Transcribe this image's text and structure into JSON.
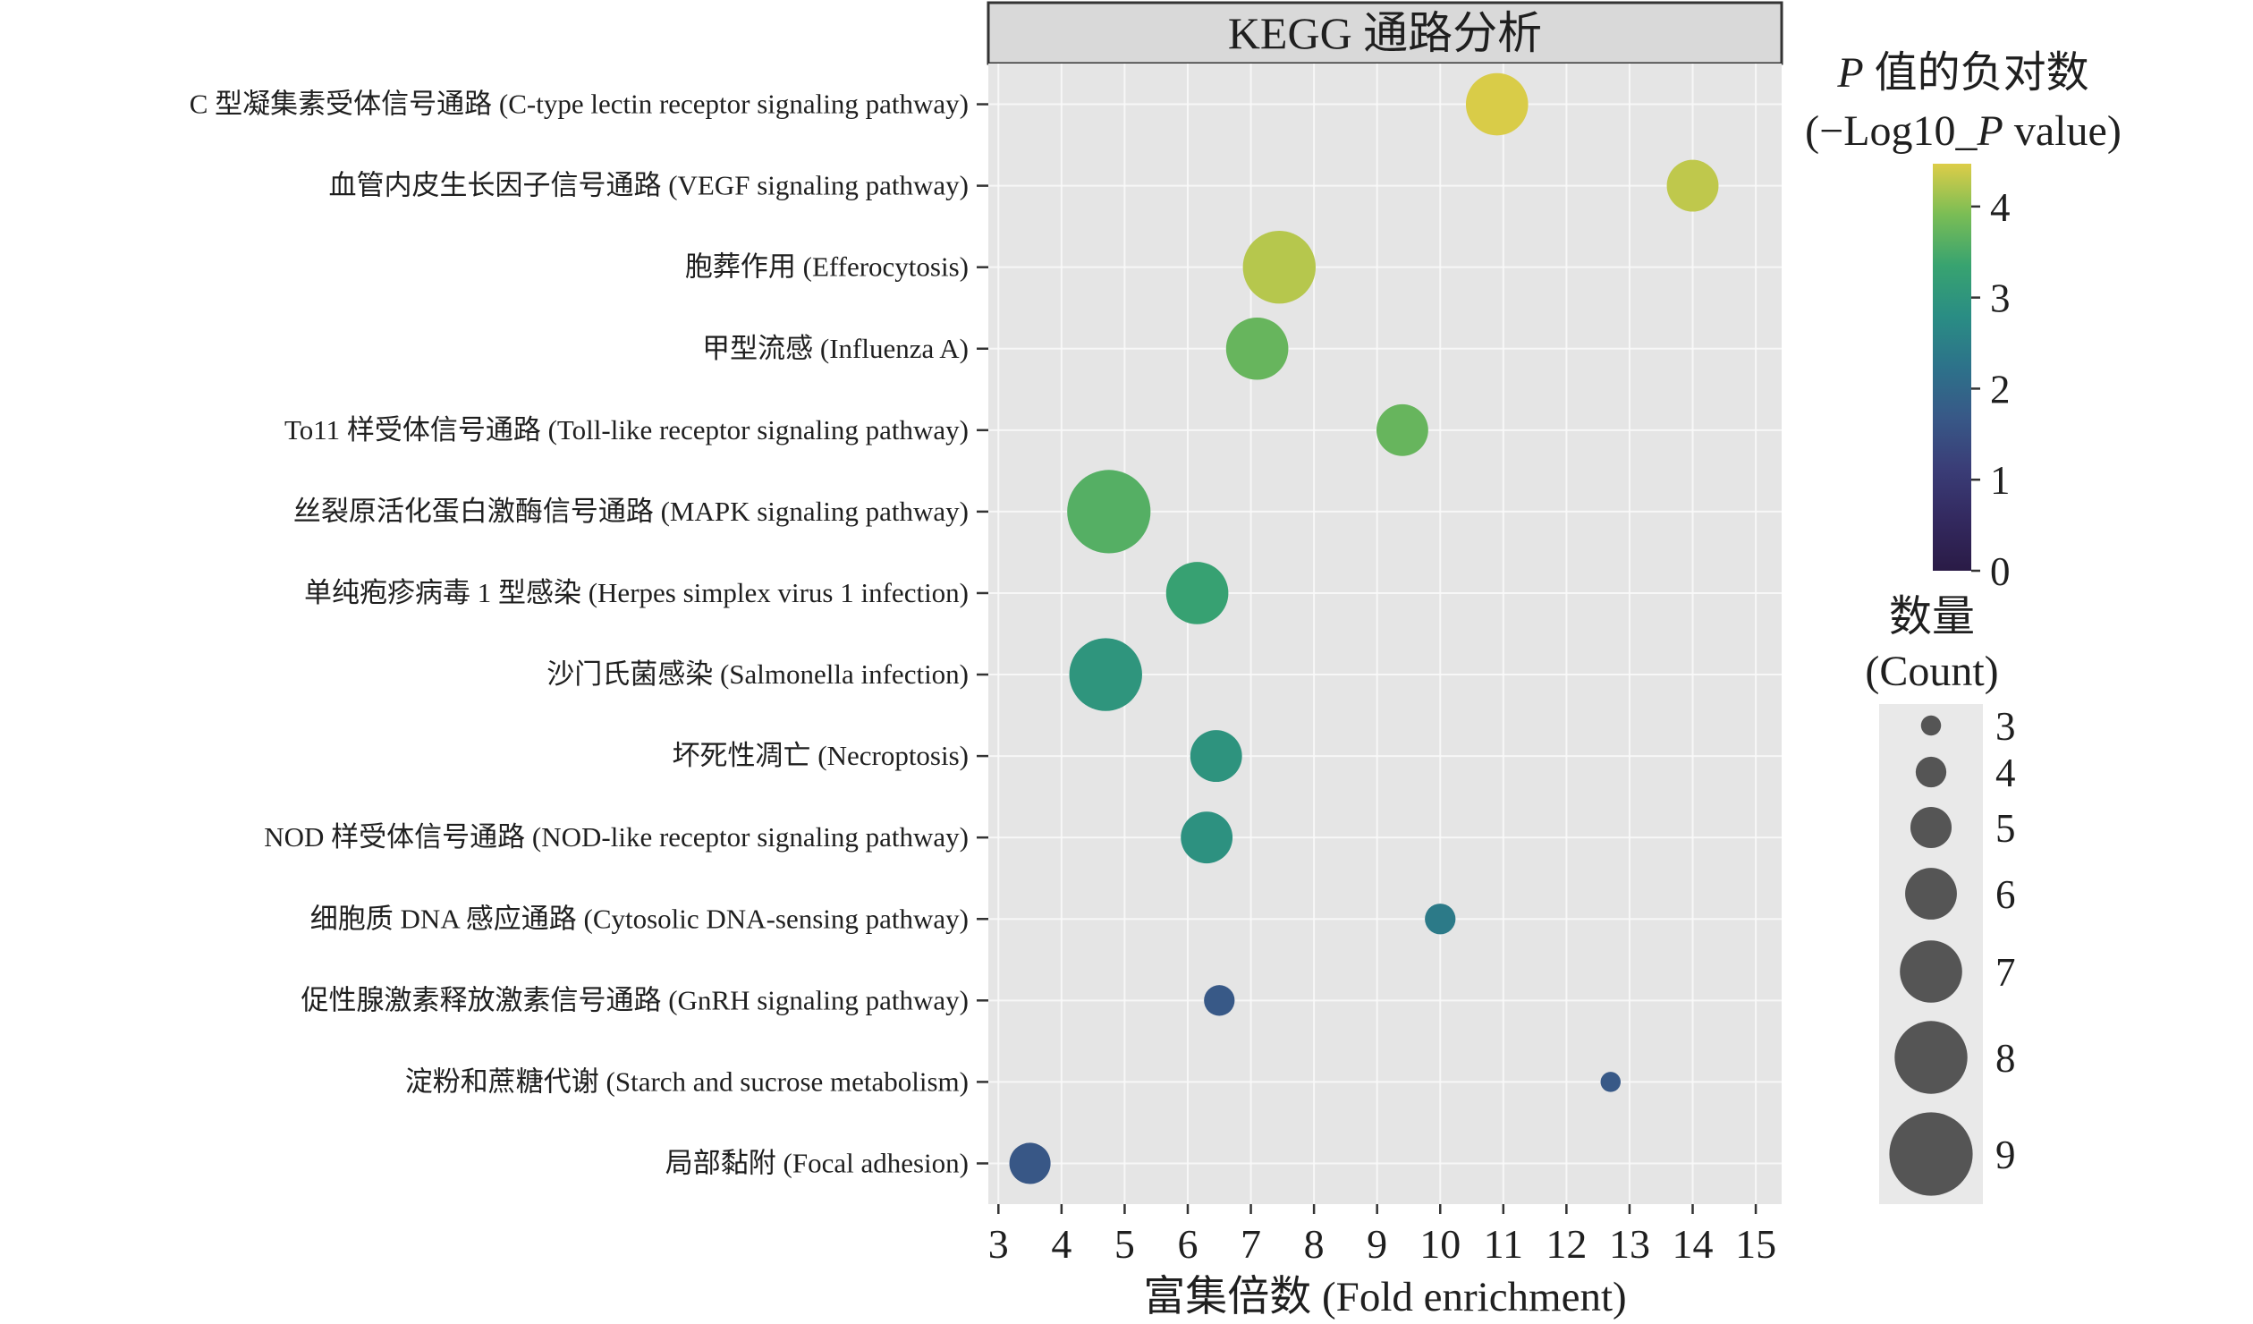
{
  "chart_data": {
    "type": "scatter",
    "title": "KEGG 通路分析",
    "xlabel": "富集倍数 (Fold enrichment)",
    "ylabel": "",
    "xlim": [
      2.84,
      15.41
    ],
    "xticks": [
      3,
      4,
      5,
      6,
      7,
      8,
      9,
      10,
      11,
      12,
      13,
      14,
      15
    ],
    "grid": true,
    "categories": [
      "C 型凝集素受体信号通路 (C-type lectin receptor signaling pathway)",
      "血管内皮生长因子信号通路 (VEGF signaling pathway)",
      "胞葬作用 (Efferocytosis)",
      "甲型流感 (Influenza A)",
      "To11 样受体信号通路 (Toll-like receptor signaling pathway)",
      "丝裂原活化蛋白激酶信号通路 (MAPK signaling pathway)",
      "单纯疱疹病毒 1 型感染 (Herpes simplex virus 1 infection)",
      "沙门氏菌感染 (Salmonella infection)",
      "坏死性凋亡 (Necroptosis)",
      "NOD 样受体信号通路 (NOD-like receptor signaling pathway)",
      "细胞质 DNA 感应通路 (Cytosolic DNA-sensing pathway)",
      "促性腺激素释放激素信号通路 (GnRH signaling pathway)",
      "淀粉和蔗糖代谢 (Starch and sucrose metabolism)",
      "局部黏附 (Focal adhesion)"
    ],
    "series": [
      {
        "x": [
          10.9,
          14.0,
          7.45,
          7.1,
          9.4,
          4.75,
          6.15,
          4.7,
          6.45,
          6.3,
          10.0,
          6.5,
          12.7,
          3.5
        ],
        "count": [
          7,
          6,
          8,
          7,
          6,
          9,
          7,
          8,
          6,
          6,
          4,
          4,
          3,
          5
        ],
        "neg_log10_p": [
          4.45,
          4.3,
          4.25,
          3.75,
          3.75,
          3.6,
          3.3,
          3.0,
          2.95,
          2.9,
          2.4,
          1.7,
          1.7,
          1.65
        ]
      }
    ],
    "color_legend": {
      "title_line1": [
        "P",
        " 值的负对数"
      ],
      "title_line2": [
        "(−Log10_",
        "P",
        " value)"
      ],
      "range": [
        0,
        4.47
      ],
      "ticks": [
        0,
        1,
        2,
        3,
        4
      ],
      "colors": [
        "#2a1b46",
        "#33295f",
        "#3a3d77",
        "#385887",
        "#2d728a",
        "#2a8d84",
        "#38a370",
        "#7abd55",
        "#ddcd48"
      ]
    },
    "size_legend": {
      "title_line1": "数量",
      "title_line2": "(Count)",
      "values": [
        3,
        4,
        5,
        6,
        7,
        8,
        9
      ],
      "color": "#555555"
    }
  }
}
